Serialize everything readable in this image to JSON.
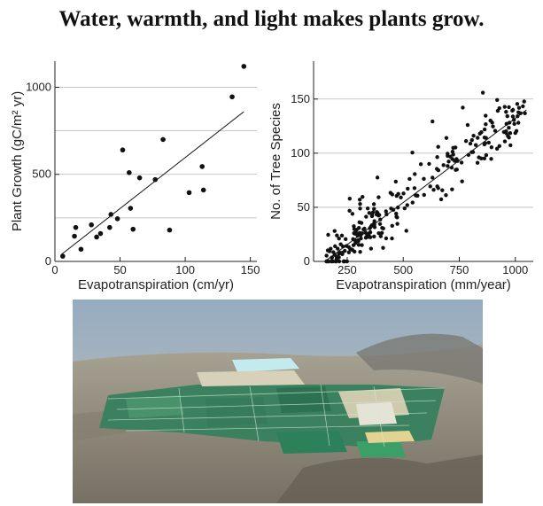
{
  "title": "Water, warmth, and light makes plants grow.",
  "chart_data": [
    {
      "type": "scatter",
      "xlabel": "Evapotranspiration (cm/yr)",
      "ylabel": "Plant Growth (gC/m² yr)",
      "xlim": [
        0,
        155
      ],
      "ylim": [
        0,
        1150
      ],
      "xticks": [
        0,
        50,
        100,
        150
      ],
      "yticks": [
        0,
        500,
        1000
      ],
      "yticks_unlabeled": [
        250,
        750
      ],
      "grid": "horizontal",
      "trendline": {
        "x": [
          5,
          145
        ],
        "y": [
          40,
          860
        ]
      },
      "points": [
        [
          6,
          30
        ],
        [
          15,
          145
        ],
        [
          16,
          195
        ],
        [
          20,
          70
        ],
        [
          28,
          210
        ],
        [
          32,
          140
        ],
        [
          35,
          160
        ],
        [
          42,
          195
        ],
        [
          43,
          270
        ],
        [
          48,
          245
        ],
        [
          52,
          640
        ],
        [
          57,
          510
        ],
        [
          58,
          305
        ],
        [
          60,
          185
        ],
        [
          65,
          480
        ],
        [
          77,
          470
        ],
        [
          83,
          700
        ],
        [
          88,
          180
        ],
        [
          103,
          395
        ],
        [
          113,
          545
        ],
        [
          114,
          410
        ],
        [
          136,
          945
        ],
        [
          145,
          1120
        ]
      ]
    },
    {
      "type": "scatter",
      "xlabel": "Evapotranspiration (mm/year)",
      "ylabel": "No. of Tree Species",
      "xlim": [
        100,
        1080
      ],
      "ylim": [
        0,
        185
      ],
      "xticks": [
        250,
        500,
        750,
        1000
      ],
      "yticks": [
        0,
        50,
        100,
        150
      ],
      "grid": "horizontal",
      "trendline": {
        "x": [
          150,
          1050
        ],
        "y": [
          0,
          140
        ]
      }
    }
  ],
  "photo": {
    "subject": "aerial-view-of-irrigated-farm-fields"
  }
}
